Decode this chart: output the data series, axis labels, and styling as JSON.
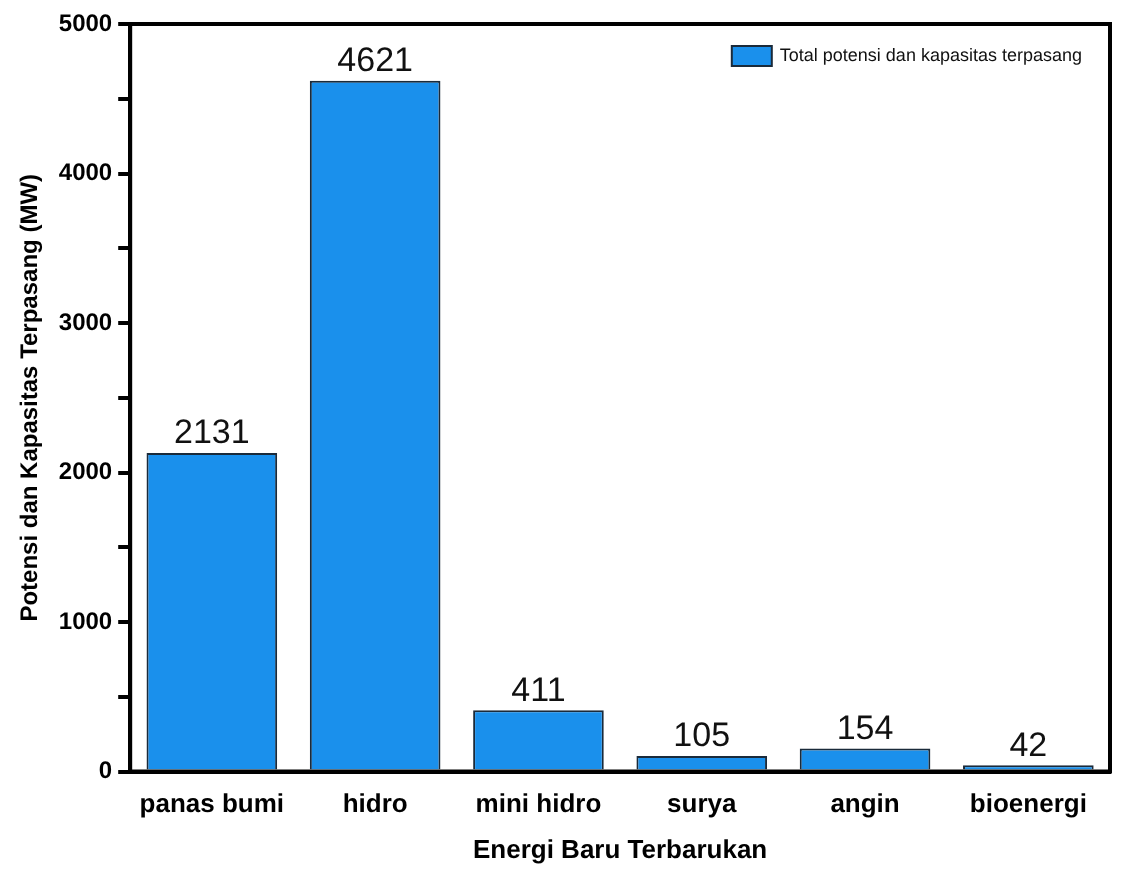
{
  "chart_data": {
    "type": "bar",
    "xlabel": "Energi Baru Terbarukan",
    "ylabel": "Potensi dan Kapasitas Terpasang (MW)",
    "categories": [
      "panas bumi",
      "hidro",
      "mini hidro",
      "surya",
      "angin",
      "bioenergi"
    ],
    "series": [
      {
        "name": "Total potensi dan kapasitas terpasang",
        "color": "#1a90ec",
        "values": [
          2131,
          4621,
          411,
          105,
          154,
          42
        ]
      }
    ],
    "ylim": [
      0,
      5000
    ],
    "yticks": [
      0,
      {
        "value": 500,
        "label": null
      },
      1000,
      {
        "value": 1500,
        "label": null
      },
      2000,
      {
        "value": 2500,
        "label": null
      },
      3000,
      {
        "value": 3500,
        "label": null
      },
      4000,
      {
        "value": 4500,
        "label": null
      },
      5000
    ],
    "grid": false,
    "legend": "top right",
    "data_labels": true
  }
}
